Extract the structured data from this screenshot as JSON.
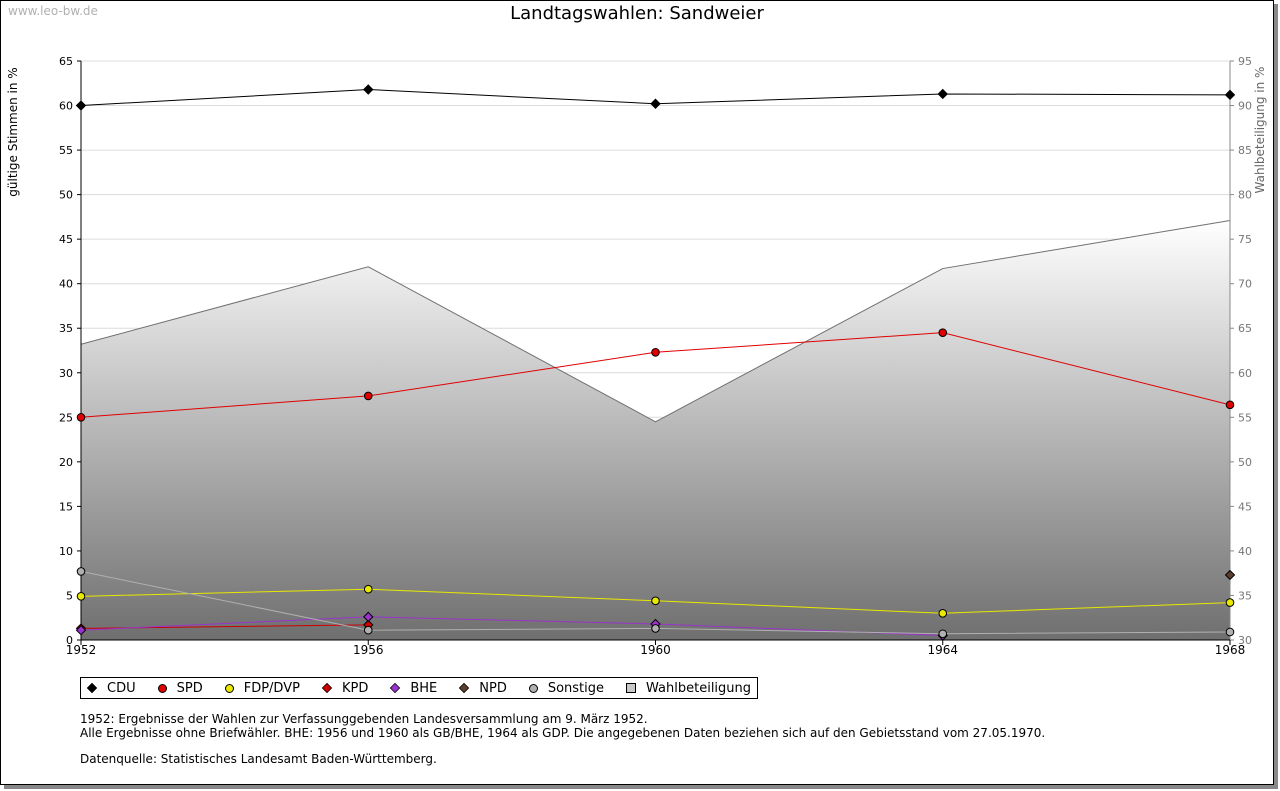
{
  "watermark": "www.leo-bw.de",
  "chart_data": {
    "type": "line",
    "title": "Landtagswahlen: Sandweier",
    "ylabel": "gültige Stimmen in %",
    "y2label": "Wahlbeteiligung in %",
    "x": [
      1952,
      1956,
      1960,
      1964,
      1968
    ],
    "xticks": [
      "1952",
      "1956",
      "1960",
      "1964",
      "1968"
    ],
    "ylim": [
      0,
      65
    ],
    "yticks": [
      0,
      5,
      10,
      15,
      20,
      25,
      30,
      35,
      40,
      45,
      50,
      55,
      60,
      65
    ],
    "y2lim": [
      30,
      95
    ],
    "y2ticks": [
      30,
      35,
      40,
      45,
      50,
      55,
      60,
      65,
      70,
      75,
      80,
      85,
      90,
      95
    ],
    "grid": true,
    "legend_position": "bottom",
    "series": [
      {
        "name": "CDU",
        "color": "#000000",
        "marker": "diamond",
        "values": [
          60.0,
          61.8,
          60.2,
          61.3,
          61.2
        ]
      },
      {
        "name": "SPD",
        "color": "#e00000",
        "marker": "circle",
        "values": [
          25.0,
          27.4,
          32.3,
          34.5,
          26.4
        ]
      },
      {
        "name": "FDP/DVP",
        "color": "#e8e800",
        "marker": "circle",
        "values": [
          4.9,
          5.7,
          4.4,
          3.0,
          4.2
        ]
      },
      {
        "name": "KPD",
        "color": "#cc0000",
        "marker": "diamond",
        "values": [
          1.3,
          1.7,
          null,
          null,
          null
        ]
      },
      {
        "name": "BHE",
        "color": "#9933cc",
        "marker": "diamond",
        "values": [
          1.1,
          2.6,
          1.8,
          0.5,
          null
        ]
      },
      {
        "name": "NPD",
        "color": "#5c3d2e",
        "marker": "diamond",
        "values": [
          null,
          null,
          null,
          null,
          7.3
        ]
      },
      {
        "name": "Sonstige",
        "color": "#b0b0b0",
        "marker": "circle",
        "values": [
          7.7,
          1.1,
          1.3,
          0.7,
          0.9
        ]
      },
      {
        "name": "Wahlbeteiligung",
        "color": "#999999",
        "marker": "square",
        "axis": "right",
        "type": "area",
        "values": [
          63.2,
          71.9,
          54.5,
          71.7,
          77.1
        ]
      }
    ]
  },
  "notes": {
    "line1": "1952: Ergebnisse der Wahlen zur Verfassunggebenden Landesversammlung am 9. März 1952.",
    "line2": "Alle Ergebnisse ohne Briefwähler. BHE: 1956 und 1960 als GB/BHE, 1964 als GDP. Die angegebenen Daten beziehen sich auf den Gebietsstand vom 27.05.1970.",
    "source": "Datenquelle: Statistisches Landesamt Baden-Württemberg."
  }
}
